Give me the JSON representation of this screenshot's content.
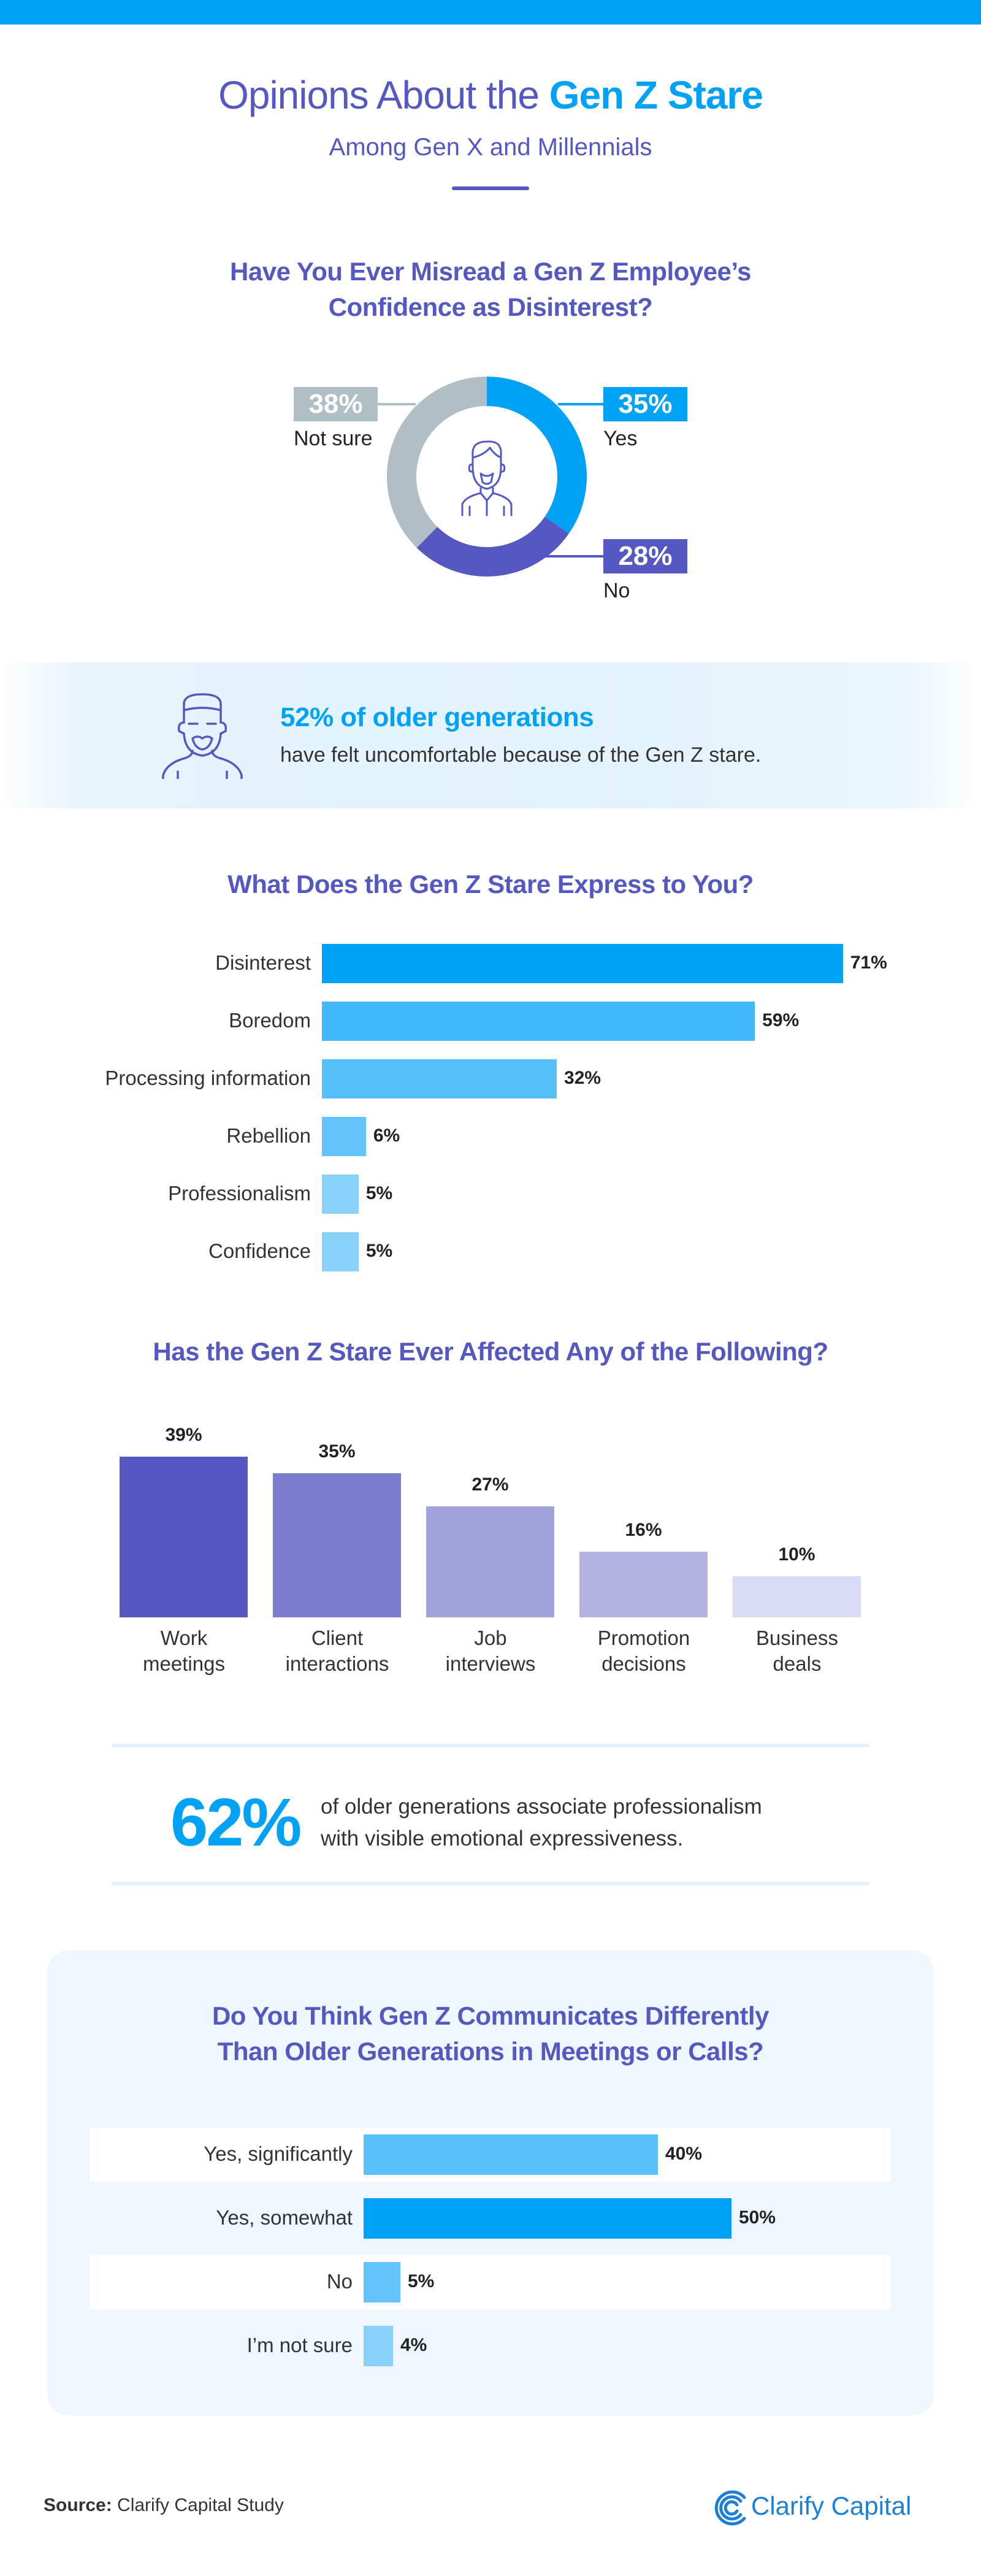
{
  "header": {
    "title_prefix": "Opinions About the",
    "title_highlight": "Gen Z Stare",
    "subtitle": "Among Gen X and Millennials"
  },
  "stat_callout_1": {
    "highlight": "52% of older generations",
    "text": "have felt uncomfortable because of the Gen Z stare.",
    "icon": "bearded-man-icon"
  },
  "stat_callout_2": {
    "number": "62%",
    "line1": "of older generations associate professionalism",
    "line2": "with visible emotional expressiveness."
  },
  "footer": {
    "source_label": "Source:",
    "source_text": "Clarify Capital Study",
    "brand": "Clarify Capital",
    "brand_icon": "clarify-capital-logo-icon",
    "brand_color": "#1e7fd8"
  },
  "colors": {
    "accent": "#00a2f5",
    "heading": "#5558c0",
    "top_bar": "#00a2f5"
  },
  "chart_data": [
    {
      "type": "pie",
      "donut": true,
      "title_line1": "Have You Ever Misread a Gen Z Employee’s",
      "title_line2": "Confidence as Disinterest?",
      "categories": [
        "Yes",
        "No",
        "Not sure"
      ],
      "values": [
        35,
        28,
        38
      ],
      "value_labels": [
        "35%",
        "28%",
        "38%"
      ],
      "colors": [
        "#00a2f5",
        "#5558c0",
        "#b0bec5"
      ],
      "center_icon": "young-man-icon"
    },
    {
      "type": "bar",
      "orientation": "horizontal",
      "title": "What Does the Gen Z Stare Express to You?",
      "categories": [
        "Disinterest",
        "Boredom",
        "Processing information",
        "Rebellion",
        "Professionalism",
        "Confidence"
      ],
      "values": [
        71,
        59,
        32,
        6,
        5,
        5
      ],
      "value_labels": [
        "71%",
        "59%",
        "32%",
        "6%",
        "5%",
        "5%"
      ],
      "colors": [
        "#00a2f5",
        "#42b8f8",
        "#56c1f9",
        "#62c4fa",
        "#88d1fb",
        "#88d1fb"
      ],
      "xlim": [
        0,
        100
      ],
      "grid": false
    },
    {
      "type": "bar",
      "orientation": "vertical",
      "title": "Has the Gen Z Stare Ever Affected Any of the Following?",
      "categories": [
        [
          "Work",
          "meetings"
        ],
        [
          "Client",
          "interactions"
        ],
        [
          "Job",
          "interviews"
        ],
        [
          "Promotion",
          "decisions"
        ],
        [
          "Business",
          "deals"
        ]
      ],
      "values": [
        39,
        35,
        27,
        16,
        10
      ],
      "value_labels": [
        "39%",
        "35%",
        "27%",
        "16%",
        "10%"
      ],
      "colors": [
        "#5558c0",
        "#7b7ecd",
        "#a0a3db",
        "#b2b3e2",
        "#d9daf3"
      ],
      "ylim": [
        0,
        39
      ],
      "grid": false
    },
    {
      "type": "bar",
      "orientation": "horizontal",
      "title_line1": "Do You Think Gen Z Communicates Differently",
      "title_line2": "Than Older Generations in Meetings or Calls?",
      "categories": [
        "Yes, significantly",
        "Yes, somewhat",
        "No",
        "I’m not sure"
      ],
      "values": [
        40,
        50,
        5,
        4
      ],
      "value_labels": [
        "40%",
        "50%",
        "5%",
        "4%"
      ],
      "colors": [
        "#5ac2fa",
        "#00a2f5",
        "#62c4fa",
        "#88d1fb"
      ],
      "xlim": [
        0,
        100
      ],
      "grid": false
    }
  ]
}
